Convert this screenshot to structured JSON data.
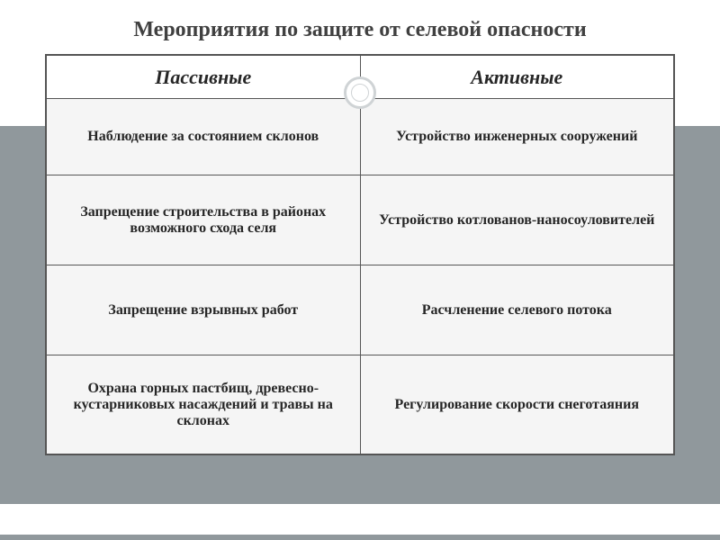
{
  "title": "Мероприятия по защите от селевой опасности",
  "colors": {
    "band": "#90989c",
    "border": "#555555",
    "text": "#262626",
    "cell_bg": "#f5f5f5",
    "header_bg": "#ffffff"
  },
  "table": {
    "headers": {
      "left": "Пассивные",
      "right": "Активные"
    },
    "rows": [
      {
        "left": "Наблюдение за состоянием склонов",
        "right": "Устройство инженерных сооружений"
      },
      {
        "left": "Запрещение строительства в районах возможного схода селя",
        "right": "Устройство котлованов-наносоуловителей"
      },
      {
        "left": "Запрещение взрывных работ",
        "right": "Расчленение селевого потока"
      },
      {
        "left": "Охрана горных пастбищ, древесно-кустарниковых насаждений и травы на склонах",
        "right": "Регулирование скорости снеготаяния"
      }
    ]
  }
}
